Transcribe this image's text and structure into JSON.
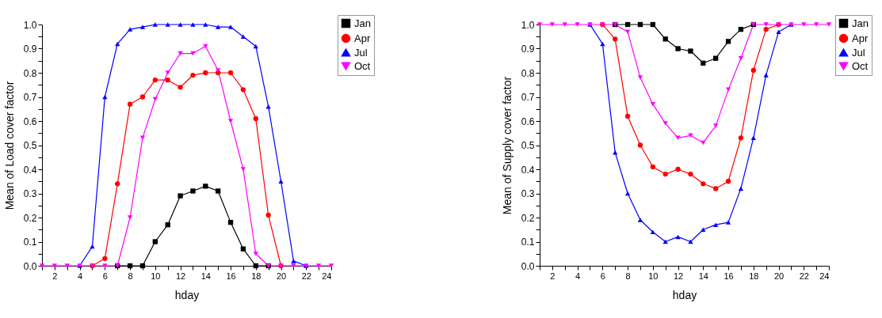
{
  "chart_data": [
    {
      "type": "line",
      "xlabel": "hday",
      "ylabel": "Mean of Load cover factor",
      "x": [
        1,
        2,
        3,
        4,
        5,
        6,
        7,
        8,
        9,
        10,
        11,
        12,
        13,
        14,
        15,
        16,
        17,
        18,
        19,
        20,
        21,
        22,
        23,
        24
      ],
      "series": [
        {
          "name": "Jan",
          "color": "#000000",
          "marker": "square",
          "values": [
            null,
            null,
            null,
            null,
            null,
            null,
            0,
            0,
            0,
            0.1,
            0.17,
            0.29,
            0.31,
            0.33,
            0.31,
            0.18,
            0.07,
            0,
            0,
            null,
            null,
            null,
            null,
            null
          ]
        },
        {
          "name": "Apr",
          "color": "#ff0000",
          "marker": "circle",
          "values": [
            null,
            null,
            null,
            null,
            0,
            0.03,
            0.34,
            0.67,
            0.7,
            0.77,
            0.77,
            0.74,
            0.79,
            0.8,
            0.8,
            0.8,
            0.73,
            0.61,
            0.21,
            0,
            null,
            null,
            null,
            null
          ]
        },
        {
          "name": "Jul",
          "color": "#0000ff",
          "marker": "triangle",
          "values": [
            null,
            null,
            null,
            0,
            0.08,
            0.7,
            0.92,
            0.98,
            0.99,
            1.0,
            1.0,
            1.0,
            1.0,
            1.0,
            0.99,
            0.99,
            0.95,
            0.91,
            0.66,
            0.35,
            0.02,
            0,
            null,
            null
          ]
        },
        {
          "name": "Oct",
          "color": "#ff00ff",
          "marker": "triangle-down",
          "values": [
            0,
            0,
            0,
            0,
            0,
            0,
            0,
            0.2,
            0.53,
            0.69,
            0.8,
            0.88,
            0.88,
            0.91,
            0.81,
            0.6,
            0.4,
            0.05,
            0,
            0,
            0,
            0,
            0,
            0
          ]
        }
      ],
      "xlim": [
        1,
        24
      ],
      "xticks": [
        {
          "value": 1,
          "label": null
        },
        2,
        {
          "value": 3,
          "label": null
        },
        4,
        {
          "value": 5,
          "label": null
        },
        6,
        {
          "value": 7,
          "label": null
        },
        8,
        {
          "value": 9,
          "label": null
        },
        10,
        {
          "value": 11,
          "label": null
        },
        12,
        {
          "value": 13,
          "label": null
        },
        14,
        {
          "value": 15,
          "label": null
        },
        16,
        {
          "value": 17,
          "label": null
        },
        18,
        {
          "value": 19,
          "label": null
        },
        20,
        {
          "value": 21,
          "label": null
        },
        22,
        {
          "value": 23,
          "label": null
        },
        24
      ],
      "ylim": [
        0,
        1.0
      ],
      "yticks": [
        {
          "value": 0,
          "label": "0.0"
        },
        {
          "value": 0.05,
          "label": null
        },
        0.1,
        {
          "value": 0.15,
          "label": null
        },
        0.2,
        {
          "value": 0.25,
          "label": null
        },
        0.3,
        {
          "value": 0.35,
          "label": null
        },
        0.4,
        {
          "value": 0.45,
          "label": null
        },
        0.5,
        {
          "value": 0.55,
          "label": null
        },
        0.6,
        {
          "value": 0.65,
          "label": null
        },
        0.7,
        {
          "value": 0.75,
          "label": null
        },
        0.8,
        {
          "value": 0.85,
          "label": null
        },
        0.9,
        {
          "value": 0.95,
          "label": null
        },
        {
          "value": 1,
          "label": "1.0"
        }
      ],
      "grid": false,
      "legend": "top right"
    },
    {
      "type": "line",
      "xlabel": "hday",
      "ylabel": "Mean of Supply cover factor",
      "x": [
        1,
        2,
        3,
        4,
        5,
        6,
        7,
        8,
        9,
        10,
        11,
        12,
        13,
        14,
        15,
        16,
        17,
        18,
        19,
        20,
        21,
        22,
        23,
        24
      ],
      "series": [
        {
          "name": "Jan",
          "color": "#000000",
          "marker": "square",
          "values": [
            null,
            null,
            null,
            null,
            null,
            null,
            1,
            1,
            1,
            1.0,
            0.94,
            0.9,
            0.89,
            0.84,
            0.86,
            0.93,
            0.98,
            1,
            null,
            null,
            null,
            null,
            null,
            null
          ]
        },
        {
          "name": "Apr",
          "color": "#ff0000",
          "marker": "circle",
          "values": [
            null,
            null,
            null,
            null,
            null,
            1,
            0.94,
            0.62,
            0.5,
            0.41,
            0.38,
            0.4,
            0.38,
            0.34,
            0.32,
            0.35,
            0.53,
            0.81,
            0.98,
            1,
            null,
            null,
            null,
            null
          ]
        },
        {
          "name": "Jul",
          "color": "#0000ff",
          "marker": "triangle",
          "values": [
            null,
            null,
            null,
            null,
            1,
            0.92,
            0.47,
            0.3,
            0.19,
            0.14,
            0.1,
            0.12,
            0.1,
            0.15,
            0.17,
            0.18,
            0.32,
            0.53,
            0.79,
            0.97,
            1,
            null,
            null,
            null
          ]
        },
        {
          "name": "Oct",
          "color": "#ff00ff",
          "marker": "triangle-down",
          "values": [
            1,
            1,
            1,
            1,
            1,
            1,
            1,
            0.97,
            0.78,
            0.67,
            0.59,
            0.53,
            0.54,
            0.51,
            0.58,
            0.73,
            0.86,
            1,
            1,
            1,
            1,
            1,
            1,
            1
          ]
        }
      ],
      "xlim": [
        1,
        24
      ],
      "xticks": [
        {
          "value": 1,
          "label": null
        },
        2,
        {
          "value": 3,
          "label": null
        },
        4,
        {
          "value": 5,
          "label": null
        },
        6,
        {
          "value": 7,
          "label": null
        },
        8,
        {
          "value": 9,
          "label": null
        },
        10,
        {
          "value": 11,
          "label": null
        },
        12,
        {
          "value": 13,
          "label": null
        },
        14,
        {
          "value": 15,
          "label": null
        },
        16,
        {
          "value": 17,
          "label": null
        },
        18,
        {
          "value": 19,
          "label": null
        },
        20,
        {
          "value": 21,
          "label": null
        },
        22,
        {
          "value": 23,
          "label": null
        },
        24
      ],
      "ylim": [
        0,
        1.0
      ],
      "yticks": [
        {
          "value": 0,
          "label": "0.0"
        },
        {
          "value": 0.05,
          "label": null
        },
        0.1,
        {
          "value": 0.15,
          "label": null
        },
        0.2,
        {
          "value": 0.25,
          "label": null
        },
        0.3,
        {
          "value": 0.35,
          "label": null
        },
        0.4,
        {
          "value": 0.45,
          "label": null
        },
        0.5,
        {
          "value": 0.55,
          "label": null
        },
        0.6,
        {
          "value": 0.65,
          "label": null
        },
        0.7,
        {
          "value": 0.75,
          "label": null
        },
        0.8,
        {
          "value": 0.85,
          "label": null
        },
        0.9,
        {
          "value": 0.95,
          "label": null
        },
        {
          "value": 1,
          "label": "1.0"
        }
      ],
      "grid": false,
      "legend": "top right"
    }
  ]
}
